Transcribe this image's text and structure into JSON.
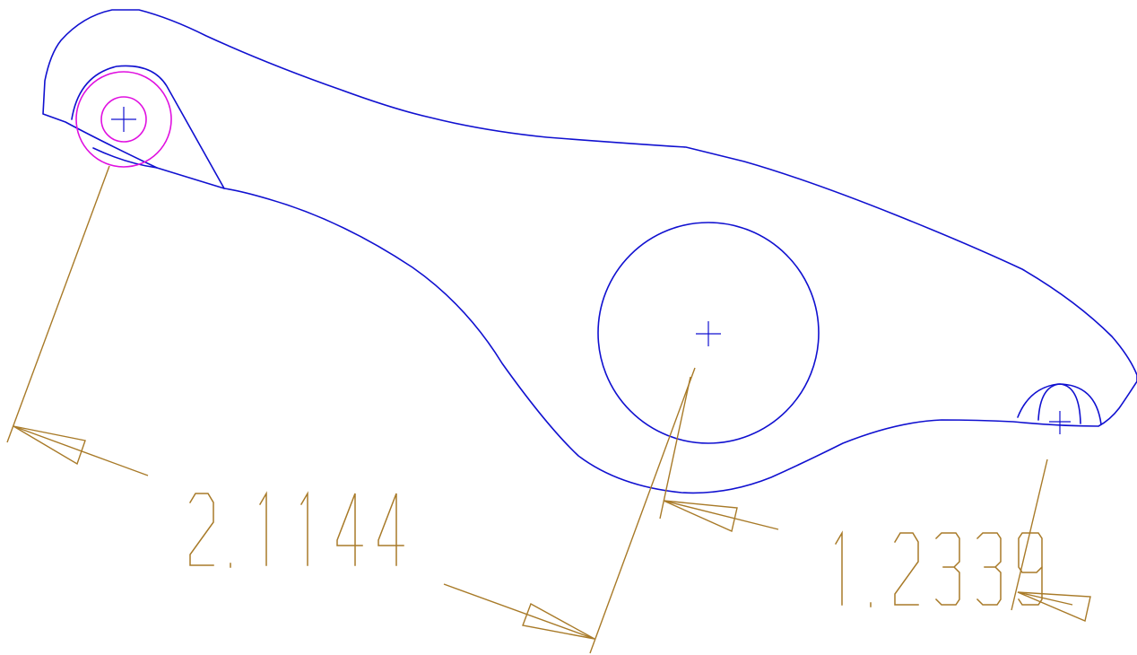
{
  "colors": {
    "background": "#ffffff",
    "part_outline": "#1010d0",
    "pin_circle": "#e010e0",
    "dimension": "#a87a28"
  },
  "dimensions": [
    {
      "id": "dim-left",
      "value": "2.1144"
    },
    {
      "id": "dim-right",
      "value": "1.2339"
    }
  ]
}
